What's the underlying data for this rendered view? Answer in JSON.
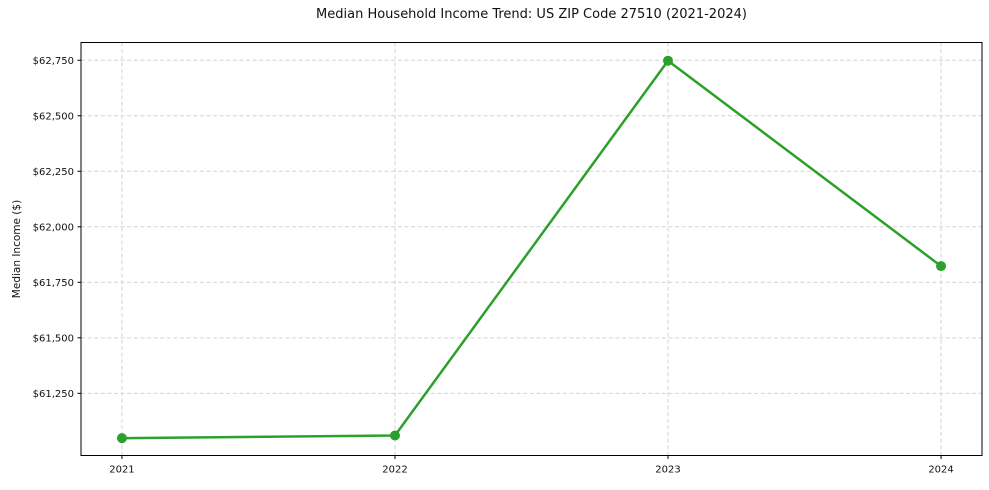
{
  "chart_data": {
    "type": "line",
    "title": "Median Household Income Trend: US ZIP Code 27510 (2021-2024)",
    "ylabel": "Median Income ($)",
    "xlabel": "",
    "categories": [
      "2021",
      "2022",
      "2023",
      "2024"
    ],
    "values": [
      61048,
      61060,
      62748,
      61823
    ],
    "y_ticks": [
      61250,
      61500,
      61750,
      62000,
      62250,
      62500,
      62750
    ],
    "y_tick_labels": [
      "$61,250",
      "$61,500",
      "$61,750",
      "$62,000",
      "$62,250",
      "$62,500",
      "$62,750"
    ],
    "ylim": [
      60970,
      62830
    ],
    "xlim": [
      -0.15,
      3.15
    ],
    "grid": true,
    "legend_position": "none",
    "line_color": "#2ca02c",
    "marker": "circle",
    "grid_color": "#d3d3d3",
    "axis_color": "#000000",
    "text_color": "#111111",
    "background_color": "#ffffff"
  }
}
